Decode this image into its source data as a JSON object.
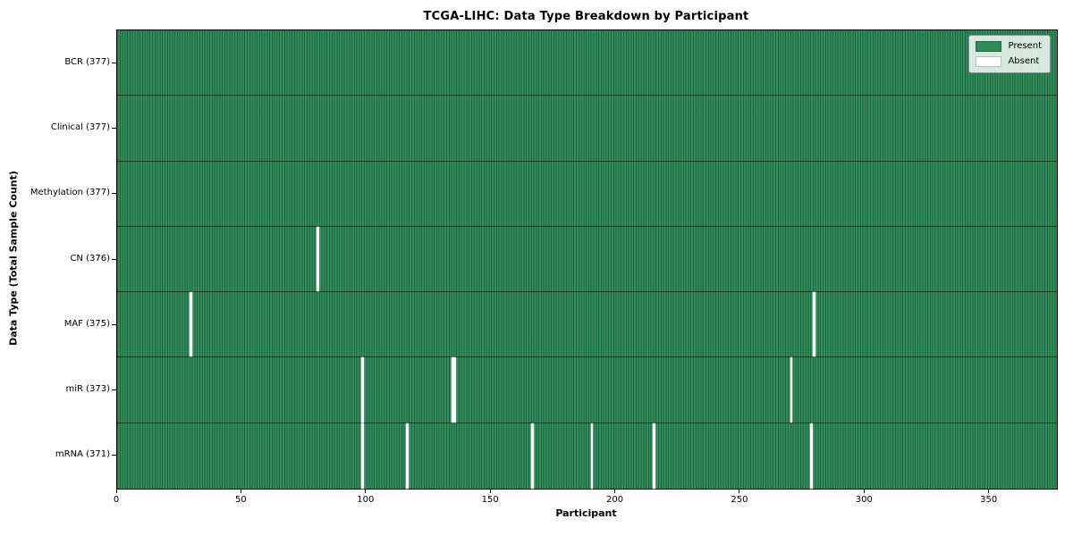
{
  "title": "TCGA-LIHC: Data Type Breakdown by Participant",
  "axes": {
    "xlabel": "Participant",
    "ylabel": "Data Type (Total Sample Count)"
  },
  "legend": {
    "items": [
      {
        "label": "Present",
        "color": "#2e8b57"
      },
      {
        "label": "Absent",
        "color": "#ffffff"
      }
    ]
  },
  "chart_data": {
    "type": "heatmap",
    "title": "TCGA-LIHC: Data Type Breakdown by Participant",
    "xlabel": "Participant",
    "ylabel": "Data Type (Total Sample Count)",
    "n_participants": 377,
    "xlim": [
      0,
      377
    ],
    "x_ticks": [
      0,
      50,
      100,
      150,
      200,
      250,
      300,
      350
    ],
    "legend_position": "upper right",
    "colors": {
      "present": "#2e8b57",
      "absent": "#ffffff"
    },
    "rows": [
      {
        "name": "BCR",
        "present_count": 377,
        "absent_participants": []
      },
      {
        "name": "Clinical",
        "present_count": 377,
        "absent_participants": []
      },
      {
        "name": "Methylation",
        "present_count": 377,
        "absent_participants": []
      },
      {
        "name": "CN",
        "present_count": 376,
        "absent_participants": [
          80
        ]
      },
      {
        "name": "MAF",
        "present_count": 375,
        "absent_participants": [
          29,
          279
        ]
      },
      {
        "name": "miR",
        "present_count": 373,
        "absent_participants": [
          98,
          134,
          135,
          270
        ]
      },
      {
        "name": "mRNA",
        "present_count": 371,
        "absent_participants": [
          98,
          116,
          166,
          190,
          215,
          278
        ]
      }
    ]
  }
}
